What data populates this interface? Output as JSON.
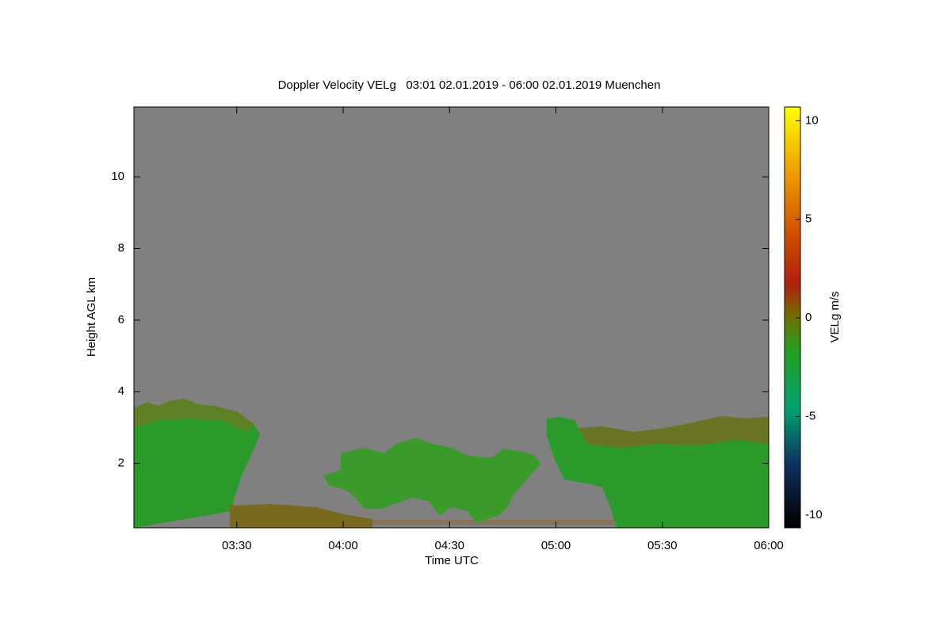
{
  "chart_data": {
    "type": "time-height",
    "title": "Doppler Velocity VELg   03:01 02.01.2019 - 06:00 02.01.2019 Muenchen",
    "x_label": "Time UTC",
    "y_label": "Height AGL km",
    "xlim": [
      "03:01",
      "06:00"
    ],
    "xticks": [
      "03:30",
      "04:00",
      "04:30",
      "05:00",
      "05:30",
      "06:00"
    ],
    "ylim": [
      0.2,
      11.95
    ],
    "yticks": [
      2,
      4,
      6,
      8,
      10
    ],
    "colorbar": {
      "label": "VELg m/s",
      "lim": [
        -10.65,
        10.7
      ],
      "ticks": [
        10,
        5,
        0,
        -5,
        -10
      ]
    }
  }
}
